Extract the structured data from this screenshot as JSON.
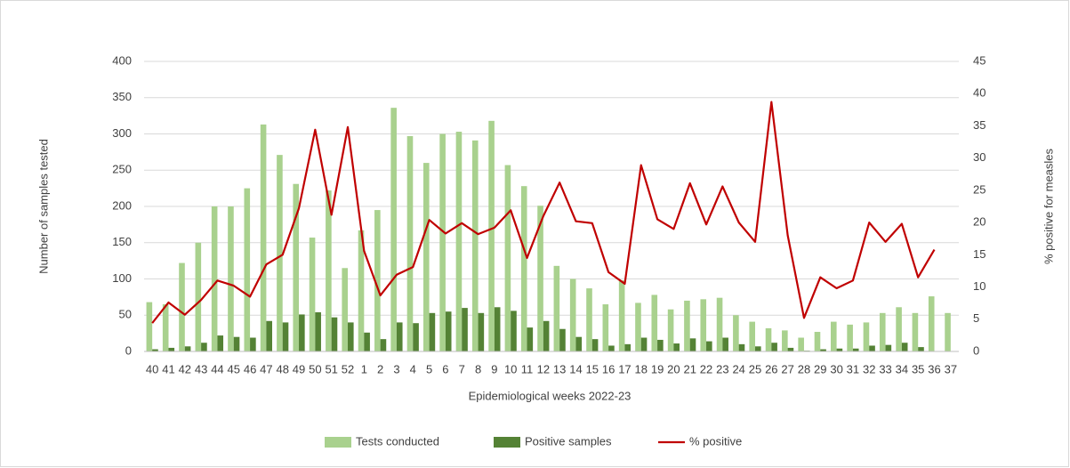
{
  "chart_data": {
    "type": "bar-line",
    "x_label": "Epidemiological weeks 2022-23",
    "y_label": "Number of samples tested",
    "y2_label": "% positive for measles",
    "categories": [
      "40",
      "41",
      "42",
      "43",
      "44",
      "45",
      "46",
      "47",
      "48",
      "49",
      "50",
      "51",
      "52",
      "1",
      "2",
      "3",
      "4",
      "5",
      "6",
      "7",
      "8",
      "9",
      "10",
      "11",
      "12",
      "13",
      "14",
      "15",
      "16",
      "17",
      "18",
      "19",
      "20",
      "21",
      "22",
      "23",
      "24",
      "25",
      "26",
      "27",
      "28",
      "29",
      "30",
      "31",
      "32",
      "33",
      "34",
      "35",
      "36",
      "37"
    ],
    "series": [
      {
        "name": "Tests conducted",
        "type": "bar",
        "color": "#a9d18e",
        "values": [
          68,
          65,
          122,
          150,
          200,
          200,
          225,
          313,
          271,
          231,
          157,
          222,
          115,
          167,
          195,
          336,
          297,
          260,
          300,
          303,
          291,
          318,
          257,
          228,
          201,
          118,
          100,
          87,
          65,
          98,
          67,
          78,
          58,
          70,
          72,
          74,
          50,
          41,
          32,
          29,
          19,
          27,
          41,
          37,
          40,
          53,
          61,
          53,
          76,
          53
        ]
      },
      {
        "name": "Positive samples",
        "type": "bar",
        "color": "#548235",
        "values": [
          3,
          5,
          7,
          12,
          22,
          20,
          19,
          42,
          40,
          51,
          54,
          47,
          40,
          26,
          17,
          40,
          39,
          53,
          55,
          60,
          53,
          61,
          56,
          33,
          42,
          31,
          20,
          17,
          8,
          10,
          19,
          16,
          11,
          18,
          14,
          19,
          10,
          7,
          12,
          5,
          1,
          3,
          4,
          4,
          8,
          9,
          12,
          6,
          null,
          null
        ]
      },
      {
        "name": "% positive",
        "type": "line",
        "axis": "y2",
        "color": "#c00000",
        "values": [
          4.4,
          7.6,
          5.7,
          8,
          11,
          10.2,
          8.5,
          13.5,
          15,
          22.2,
          34.4,
          21.2,
          34.8,
          15.6,
          8.7,
          11.9,
          13.1,
          20.4,
          18.3,
          19.9,
          18.2,
          19.2,
          21.9,
          14.5,
          21,
          26.2,
          20.2,
          19.9,
          12.3,
          10.5,
          28.9,
          20.5,
          19,
          26.1,
          19.7,
          25.6,
          20,
          17,
          38.7,
          18,
          5.2,
          11.5,
          9.8,
          11,
          20,
          17,
          19.8,
          11.5,
          15.8,
          null
        ]
      }
    ],
    "ylim": [
      0,
      400
    ],
    "yticks": [
      0,
      50,
      100,
      150,
      200,
      250,
      300,
      350,
      400
    ],
    "y2lim": [
      0,
      45
    ],
    "y2ticks": [
      0,
      5,
      10,
      15,
      20,
      25,
      30,
      35,
      40,
      45
    ],
    "grid": true,
    "legend": "bottom"
  }
}
